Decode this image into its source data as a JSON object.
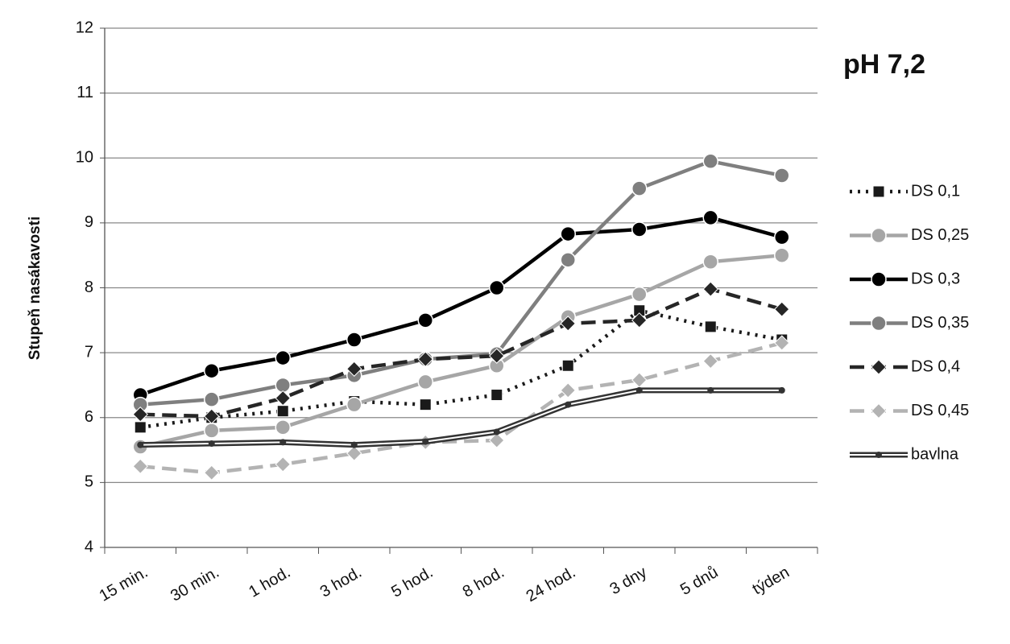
{
  "chart_data": {
    "type": "line",
    "title": "pH 7,2",
    "y_label": "Stupeň nasákavosti",
    "categories": [
      "15 min.",
      "30 min.",
      "1 hod.",
      "3 hod.",
      "5 hod.",
      "8 hod.",
      "24 hod.",
      "3 dny",
      "5 dnů",
      "týden"
    ],
    "ylim": [
      4,
      12
    ],
    "yticks": [
      4,
      5,
      6,
      7,
      8,
      9,
      10,
      11,
      12
    ],
    "grid": true,
    "legend": "right",
    "series": [
      {
        "name": "DS 0,1",
        "color": "#1a1a1a",
        "line_style": "dotted",
        "marker": "square",
        "values": [
          5.85,
          6.0,
          6.1,
          6.25,
          6.2,
          6.35,
          6.8,
          7.65,
          7.4,
          7.2
        ]
      },
      {
        "name": "DS 0,25",
        "color": "#a6a6a6",
        "line_style": "solid",
        "marker": "circle",
        "values": [
          5.55,
          5.8,
          5.85,
          6.2,
          6.55,
          6.8,
          7.55,
          7.9,
          8.4,
          8.5
        ]
      },
      {
        "name": "DS 0,3",
        "color": "#000000",
        "line_style": "solid",
        "marker": "circle",
        "values": [
          6.35,
          6.72,
          6.92,
          7.2,
          7.5,
          8.0,
          8.83,
          8.9,
          9.08,
          8.78
        ]
      },
      {
        "name": "DS 0,35",
        "color": "#7f7f7f",
        "line_style": "solid",
        "marker": "circle",
        "values": [
          6.2,
          6.28,
          6.5,
          6.65,
          6.9,
          6.98,
          8.43,
          9.53,
          9.95,
          9.73
        ]
      },
      {
        "name": "DS 0,4",
        "color": "#262626",
        "line_style": "dashed",
        "marker": "diamond",
        "values": [
          6.05,
          6.02,
          6.3,
          6.75,
          6.9,
          6.95,
          7.45,
          7.5,
          7.98,
          7.67
        ]
      },
      {
        "name": "DS 0,45",
        "color": "#b3b3b3",
        "line_style": "dashed",
        "marker": "diamond",
        "values": [
          5.25,
          5.15,
          5.28,
          5.45,
          5.62,
          5.65,
          6.42,
          6.58,
          6.87,
          7.15
        ]
      },
      {
        "name": "bavlna",
        "color": "#333333",
        "line_style": "double",
        "marker": "small",
        "values": [
          5.58,
          5.6,
          5.62,
          5.58,
          5.63,
          5.78,
          6.2,
          6.42,
          6.42,
          6.42
        ]
      }
    ]
  }
}
